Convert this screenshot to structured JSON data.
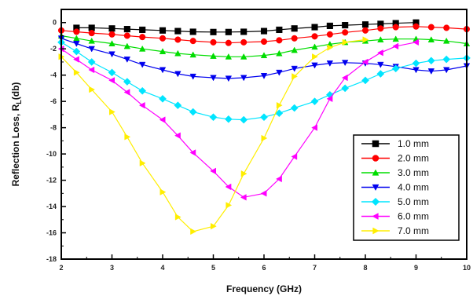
{
  "chart_data": {
    "type": "line",
    "title": "",
    "xlabel": "Frequency (GHz)",
    "ylabel": "Reflection Loss, R",
    "ylabel_subscript": "L",
    "ylabel_unit": "(db)",
    "xlim": [
      2,
      10
    ],
    "ylim": [
      -18,
      1
    ],
    "x_ticks": [
      "2",
      "3",
      "4",
      "5",
      "6",
      "7",
      "8",
      "9",
      "10"
    ],
    "y_ticks": [
      "0",
      "-2",
      "-4",
      "-6",
      "-8",
      "-10",
      "-12",
      "-14",
      "-16",
      "-18"
    ],
    "legend_position": "bottom-right",
    "grid": false,
    "x": [
      2.0,
      2.3,
      2.6,
      3.0,
      3.3,
      3.6,
      4.0,
      4.3,
      4.6,
      5.0,
      5.3,
      5.6,
      6.0,
      6.3,
      6.6,
      7.0,
      7.3,
      7.6,
      8.0,
      8.3,
      8.6,
      9.0,
      9.3,
      9.6,
      10.0
    ],
    "series": [
      {
        "name": "1.0 mm",
        "color": "#000000",
        "marker": "square",
        "values": [
          null,
          -0.4,
          -0.4,
          -0.45,
          -0.5,
          -0.55,
          -0.6,
          -0.65,
          -0.7,
          -0.72,
          -0.72,
          -0.7,
          -0.65,
          -0.55,
          -0.45,
          -0.35,
          -0.25,
          -0.2,
          -0.15,
          -0.1,
          -0.05,
          0.0,
          null,
          null,
          null
        ]
      },
      {
        "name": "2.0 mm",
        "color": "#ff0000",
        "marker": "circle",
        "values": [
          -0.6,
          -0.7,
          -0.8,
          -0.9,
          -1.0,
          -1.1,
          -1.2,
          -1.3,
          -1.4,
          -1.5,
          -1.55,
          -1.5,
          -1.45,
          -1.35,
          -1.2,
          -1.05,
          -0.9,
          -0.75,
          -0.6,
          -0.45,
          -0.35,
          -0.3,
          -0.35,
          -0.4,
          -0.5
        ]
      },
      {
        "name": "3.0 mm",
        "color": "#00dd00",
        "marker": "triangle-up",
        "values": [
          -1.0,
          -1.2,
          -1.4,
          -1.6,
          -1.8,
          -2.0,
          -2.2,
          -2.35,
          -2.45,
          -2.55,
          -2.6,
          -2.6,
          -2.5,
          -2.35,
          -2.1,
          -1.85,
          -1.65,
          -1.5,
          -1.4,
          -1.3,
          -1.25,
          -1.25,
          -1.3,
          -1.4,
          -1.6
        ]
      },
      {
        "name": "4.0 mm",
        "color": "#0000ee",
        "marker": "triangle-down",
        "values": [
          -1.2,
          -1.6,
          -2.0,
          -2.4,
          -2.8,
          -3.2,
          -3.6,
          -3.9,
          -4.1,
          -4.2,
          -4.25,
          -4.2,
          -4.05,
          -3.8,
          -3.5,
          -3.25,
          -3.1,
          -3.05,
          -3.1,
          -3.2,
          -3.35,
          -3.6,
          -3.7,
          -3.6,
          -3.3
        ]
      },
      {
        "name": "5.0 mm",
        "color": "#00e5ff",
        "marker": "diamond",
        "values": [
          -1.5,
          -2.2,
          -3.0,
          -3.8,
          -4.5,
          -5.2,
          -5.8,
          -6.3,
          -6.8,
          -7.2,
          -7.35,
          -7.4,
          -7.2,
          -6.9,
          -6.5,
          -6.0,
          -5.5,
          -5.0,
          -4.4,
          -3.9,
          -3.5,
          -3.1,
          -2.9,
          -2.8,
          -2.7
        ]
      },
      {
        "name": "6.0 mm",
        "color": "#ff00ff",
        "marker": "triangle-left",
        "values": [
          -2.0,
          -2.8,
          -3.6,
          -4.4,
          -5.3,
          -6.3,
          -7.4,
          -8.6,
          -9.9,
          -11.3,
          -12.5,
          -13.3,
          -13.0,
          -11.9,
          -10.2,
          -8.0,
          -5.8,
          -4.2,
          -3.0,
          -2.3,
          -1.8,
          -1.5,
          null,
          null,
          null
        ]
      },
      {
        "name": "7.0 mm",
        "color": "#ffee00",
        "marker": "triangle-right",
        "values": [
          -2.6,
          -3.8,
          -5.1,
          -6.8,
          -8.7,
          -10.7,
          -12.9,
          -14.8,
          -15.9,
          -15.5,
          -13.9,
          -11.5,
          -8.8,
          -6.3,
          -4.1,
          -2.6,
          -1.9,
          -1.5,
          -1.3,
          null,
          null,
          null,
          null,
          null,
          null
        ]
      }
    ]
  }
}
